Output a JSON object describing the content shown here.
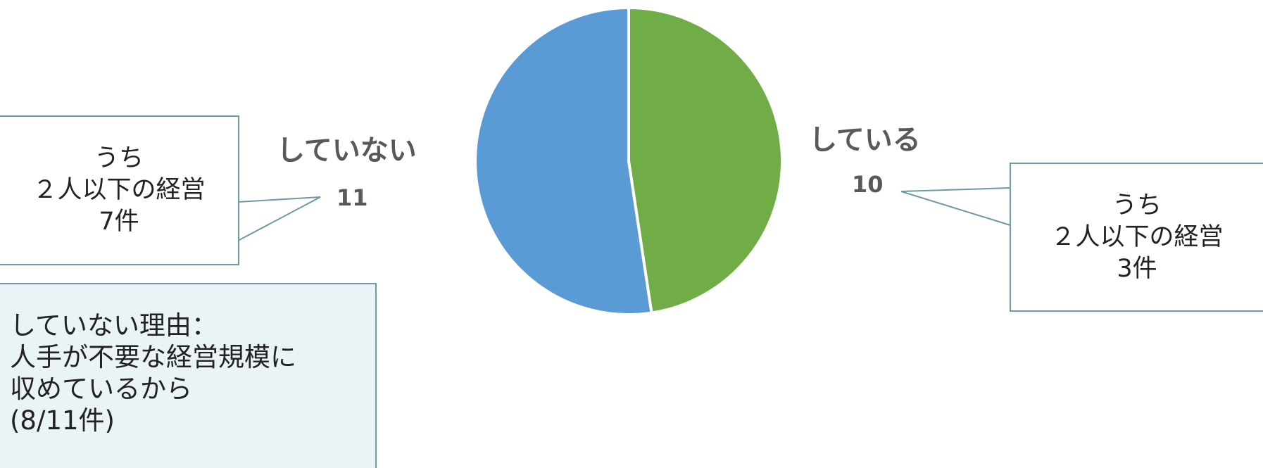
{
  "chart_data": {
    "type": "pie",
    "slices": [
      {
        "label": "している",
        "value": 10,
        "color": "#70ad47"
      },
      {
        "label": "していない",
        "value": 11,
        "color": "#5b9bd5"
      }
    ],
    "start": "12 o'clock",
    "direction": "clockwise"
  },
  "callouts": {
    "not_doing": {
      "lines": [
        "うち",
        "２人以下の経営",
        "7件"
      ]
    },
    "doing": {
      "lines": [
        "うち",
        "２人以下の経営",
        "3件"
      ]
    }
  },
  "reason": {
    "lines": [
      "していない理由：",
      "人手が不要な経営規模に",
      "収めているから",
      "(8/11件)"
    ]
  }
}
